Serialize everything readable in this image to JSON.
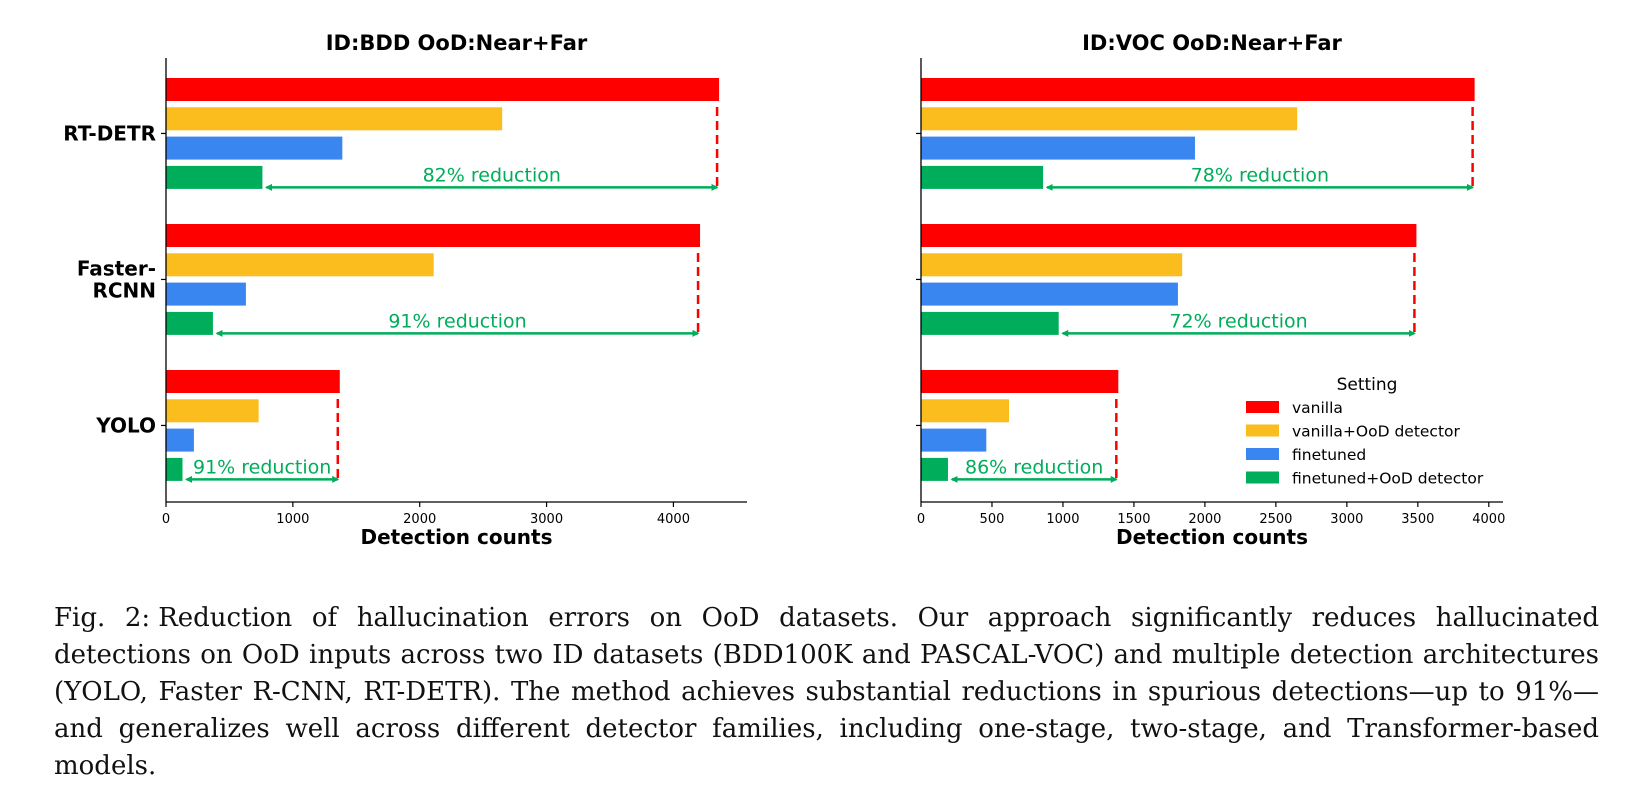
{
  "colors": {
    "vanilla": "#ff0000",
    "vanilla+OoD detector": "#fbbc1e",
    "finetuned": "#3a86f0",
    "finetuned+OoD detector": "#00ad5a",
    "reduction_arrow": "#00ad5a",
    "reference_line": "#ff0000"
  },
  "legend": {
    "title": "Setting",
    "items": [
      "vanilla",
      "vanilla+OoD detector",
      "finetuned",
      "finetuned+OoD detector"
    ]
  },
  "chart_data": [
    {
      "type": "bar",
      "orientation": "horizontal",
      "title": "ID:BDD    OoD:Near+Far",
      "xlabel": "Detection counts",
      "ylabel": "",
      "xlim": [
        0,
        4580
      ],
      "xticks": [
        0,
        1000,
        2000,
        3000,
        4000
      ],
      "categories": [
        "RT-DETR",
        "Faster-\nRCNN",
        "YOLO"
      ],
      "series": [
        {
          "name": "vanilla",
          "values": [
            4360,
            4210,
            1370
          ]
        },
        {
          "name": "vanilla+OoD detector",
          "values": [
            2650,
            2110,
            730
          ]
        },
        {
          "name": "finetuned",
          "values": [
            1390,
            630,
            220
          ]
        },
        {
          "name": "finetuned+OoD detector",
          "values": [
            760,
            370,
            130
          ]
        }
      ],
      "annotations": [
        "82% reduction",
        "91% reduction",
        "91% reduction"
      ],
      "legend": false
    },
    {
      "type": "bar",
      "orientation": "horizontal",
      "title": "ID:VOC    OoD:Near+Far",
      "xlabel": "Detection counts",
      "ylabel": "",
      "xlim": [
        0,
        4100
      ],
      "xticks": [
        0,
        500,
        1000,
        1500,
        2000,
        2500,
        3000,
        3500,
        4000
      ],
      "categories": [
        "RT-DETR",
        "Faster-RCNN",
        "YOLO"
      ],
      "series": [
        {
          "name": "vanilla",
          "values": [
            3900,
            3490,
            1390
          ]
        },
        {
          "name": "vanilla+OoD detector",
          "values": [
            2650,
            1840,
            620
          ]
        },
        {
          "name": "finetuned",
          "values": [
            1930,
            1810,
            460
          ]
        },
        {
          "name": "finetuned+OoD detector",
          "values": [
            860,
            970,
            190
          ]
        }
      ],
      "annotations": [
        "78% reduction",
        "72% reduction",
        "86% reduction"
      ],
      "legend": true,
      "legend_position": "lower-right"
    }
  ],
  "caption": {
    "label": "Fig. 2:",
    "text": "Reduction of hallucination errors on OoD datasets. Our approach significantly reduces hallucinated detections on OoD inputs across two ID datasets (BDD100K and PASCAL-VOC) and multiple detection architectures (YOLO, Faster R-CNN, RT-DETR). The method achieves substantial reductions in spurious detections—up to 91%—and generalizes well across different detector families, including one-stage, two-stage, and Transformer-based models."
  }
}
